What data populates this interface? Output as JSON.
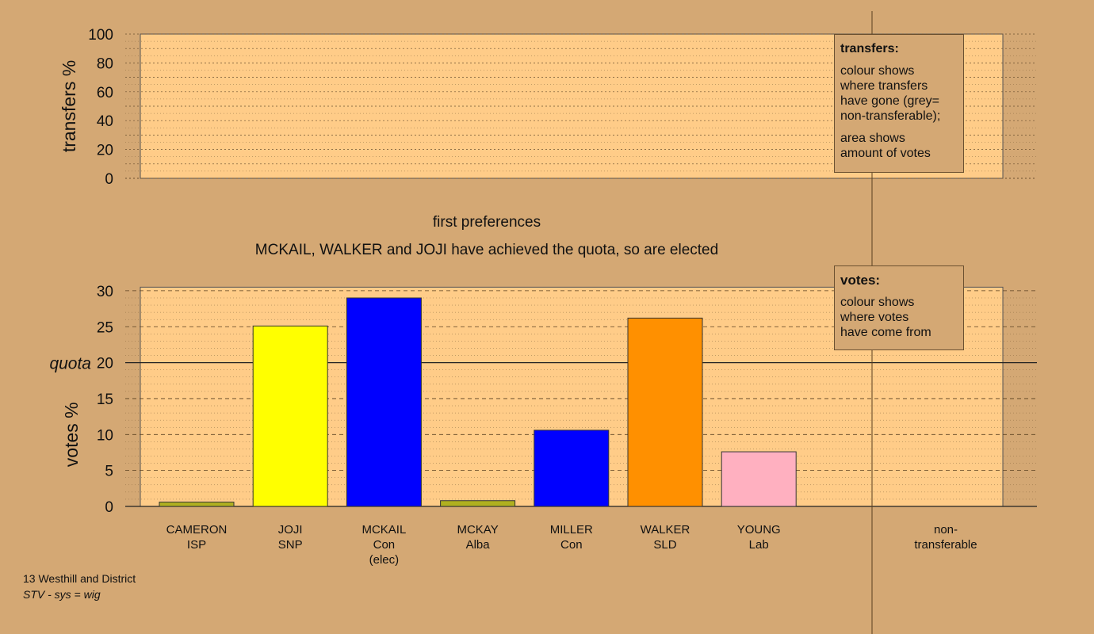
{
  "chart_data": [
    {
      "type": "bar",
      "ylabel": "transfers %",
      "ylim": [
        0,
        100
      ],
      "yticks": [
        0,
        20,
        40,
        60,
        80,
        100
      ],
      "values": []
    },
    {
      "type": "bar",
      "title": "first preferences",
      "subtitle": "MCKAIL, WALKER and JOJI have achieved the quota, so are elected",
      "ylabel": "votes %",
      "ylim": [
        0,
        30
      ],
      "yticks": [
        0,
        5,
        10,
        15,
        20,
        25,
        30
      ],
      "quota": 20,
      "quota_label": "quota",
      "categories": [
        {
          "name": "CAMERON",
          "party": "ISP",
          "note": ""
        },
        {
          "name": "JOJI",
          "party": "SNP",
          "note": ""
        },
        {
          "name": "MCKAIL",
          "party": "Con",
          "note": "(elec)"
        },
        {
          "name": "MCKAY",
          "party": "Alba",
          "note": ""
        },
        {
          "name": "MILLER",
          "party": "Con",
          "note": ""
        },
        {
          "name": "WALKER",
          "party": "SLD",
          "note": ""
        },
        {
          "name": "YOUNG",
          "party": "Lab",
          "note": ""
        }
      ],
      "values": [
        0.6,
        25.1,
        29.0,
        0.8,
        10.6,
        26.2,
        7.6
      ],
      "colors": [
        "#b0b020",
        "#ffff00",
        "#0000ff",
        "#b0b020",
        "#0000ff",
        "#ff9000",
        "#ffb0c0"
      ],
      "extra_category": [
        "non-",
        "transferable"
      ]
    }
  ],
  "legend": {
    "transfers": {
      "title": "transfers:",
      "lines": [
        "colour shows",
        "where transfers",
        "have gone (grey=",
        "non-transferable);"
      ],
      "lines2": [
        "area shows",
        "amount of votes"
      ]
    },
    "votes": {
      "title": "votes:",
      "lines": [
        "colour shows",
        "where votes",
        "have come from"
      ]
    }
  },
  "footer": {
    "district": "13 Westhill and District",
    "system": "STV - sys = wig"
  }
}
